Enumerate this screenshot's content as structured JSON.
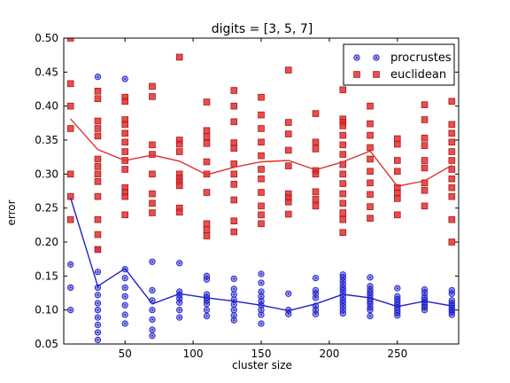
{
  "chart_data": {
    "type": "scatter",
    "title": "digits = [3, 5, 7]",
    "xlabel": "cluster size",
    "ylabel": "error",
    "xlim": [
      5,
      295
    ],
    "ylim": [
      0.05,
      0.5
    ],
    "xticks": [
      50,
      100,
      150,
      200,
      250
    ],
    "yticks": [
      0.05,
      0.1,
      0.15,
      0.2,
      0.25,
      0.3,
      0.35,
      0.4,
      0.45,
      0.5
    ],
    "xtick_labels": [
      "50",
      "100",
      "150",
      "200",
      "250"
    ],
    "ytick_labels": [
      "0.05",
      "0.10",
      "0.15",
      "0.20",
      "0.25",
      "0.30",
      "0.35",
      "0.40",
      "0.45",
      "0.50"
    ],
    "legend_position": "top-right",
    "grid": false,
    "x": [
      10,
      30,
      50,
      70,
      90,
      110,
      130,
      150,
      170,
      190,
      210,
      230,
      250,
      270,
      290
    ],
    "series": [
      {
        "name": "procrustes",
        "color": "#1f1fcc",
        "marker": "circle",
        "mean": [
          0.265,
          0.135,
          0.161,
          0.109,
          0.124,
          0.118,
          0.113,
          0.107,
          0.099,
          0.109,
          0.123,
          0.118,
          0.105,
          0.113,
          0.106
        ],
        "points": [
          [
            0.167,
            0.133,
            0.1
          ],
          [
            0.443,
            0.189,
            0.156,
            0.133,
            0.122,
            0.11,
            0.1,
            0.089,
            0.078,
            0.067,
            0.056
          ],
          [
            0.44,
            0.16,
            0.147,
            0.133,
            0.12,
            0.107,
            0.093,
            0.08
          ],
          [
            0.171,
            0.129,
            0.114,
            0.1,
            0.086,
            0.071,
            0.062
          ],
          [
            0.169,
            0.127,
            0.122,
            0.117,
            0.111,
            0.1,
            0.089
          ],
          [
            0.15,
            0.145,
            0.123,
            0.118,
            0.114,
            0.109,
            0.1,
            0.091
          ],
          [
            0.146,
            0.131,
            0.123,
            0.115,
            0.108,
            0.1,
            0.092,
            0.085
          ],
          [
            0.153,
            0.14,
            0.127,
            0.12,
            0.113,
            0.107,
            0.1,
            0.093,
            0.08
          ],
          [
            0.124,
            0.1,
            0.094
          ],
          [
            0.147,
            0.129,
            0.124,
            0.118,
            0.106,
            0.1,
            0.094
          ],
          [
            0.152,
            0.148,
            0.143,
            0.138,
            0.133,
            0.129,
            0.124,
            0.119,
            0.114,
            0.11,
            0.105,
            0.1,
            0.095
          ],
          [
            0.148,
            0.135,
            0.13,
            0.126,
            0.122,
            0.117,
            0.113,
            0.109,
            0.104,
            0.1,
            0.091
          ],
          [
            0.132,
            0.12,
            0.116,
            0.112,
            0.108,
            0.104,
            0.1,
            0.096,
            0.092
          ],
          [
            0.13,
            0.125,
            0.119,
            0.115,
            0.111,
            0.107,
            0.104,
            0.1
          ],
          [
            0.129,
            0.124,
            0.114,
            0.11,
            0.107,
            0.103,
            0.1,
            0.097,
            0.093
          ]
        ]
      },
      {
        "name": "euclidean",
        "color": "#e03030",
        "marker": "square",
        "mean": [
          0.381,
          0.336,
          0.32,
          0.328,
          0.319,
          0.299,
          0.31,
          0.318,
          0.32,
          0.306,
          0.318,
          0.334,
          0.282,
          0.29,
          0.313
        ],
        "points": [
          [
            0.5,
            0.433,
            0.4,
            0.367,
            0.3,
            0.267,
            0.233
          ],
          [
            0.422,
            0.411,
            0.378,
            0.367,
            0.356,
            0.322,
            0.311,
            0.3,
            0.289,
            0.267,
            0.233,
            0.211,
            0.189
          ],
          [
            0.413,
            0.407,
            0.38,
            0.373,
            0.36,
            0.347,
            0.333,
            0.32,
            0.307,
            0.28,
            0.273,
            0.267,
            0.24
          ],
          [
            0.429,
            0.414,
            0.343,
            0.329,
            0.3,
            0.271,
            0.257,
            0.243
          ],
          [
            0.472,
            0.35,
            0.344,
            0.333,
            0.3,
            0.294,
            0.289,
            0.283,
            0.25,
            0.244
          ],
          [
            0.406,
            0.364,
            0.355,
            0.345,
            0.318,
            0.3,
            0.273,
            0.227,
            0.218,
            0.209
          ],
          [
            0.423,
            0.4,
            0.377,
            0.346,
            0.338,
            0.315,
            0.3,
            0.285,
            0.262,
            0.231,
            0.215
          ],
          [
            0.413,
            0.387,
            0.367,
            0.347,
            0.327,
            0.307,
            0.293,
            0.273,
            0.253,
            0.24,
            0.227
          ],
          [
            0.453,
            0.376,
            0.359,
            0.335,
            0.312,
            0.271,
            0.265,
            0.259,
            0.241
          ],
          [
            0.389,
            0.347,
            0.337,
            0.305,
            0.3,
            0.274,
            0.263,
            0.253
          ],
          [
            0.424,
            0.381,
            0.376,
            0.371,
            0.357,
            0.343,
            0.329,
            0.314,
            0.3,
            0.286,
            0.271,
            0.257,
            0.243,
            0.233,
            0.214
          ],
          [
            0.4,
            0.374,
            0.357,
            0.339,
            0.322,
            0.304,
            0.287,
            0.27,
            0.252,
            0.235
          ],
          [
            0.352,
            0.344,
            0.32,
            0.304,
            0.28,
            0.272,
            0.264,
            0.24
          ],
          [
            0.402,
            0.38,
            0.353,
            0.342,
            0.32,
            0.309,
            0.287,
            0.276,
            0.253
          ],
          [
            0.407,
            0.373,
            0.36,
            0.347,
            0.333,
            0.32,
            0.307,
            0.293,
            0.28,
            0.267,
            0.233,
            0.2
          ]
        ]
      }
    ]
  }
}
